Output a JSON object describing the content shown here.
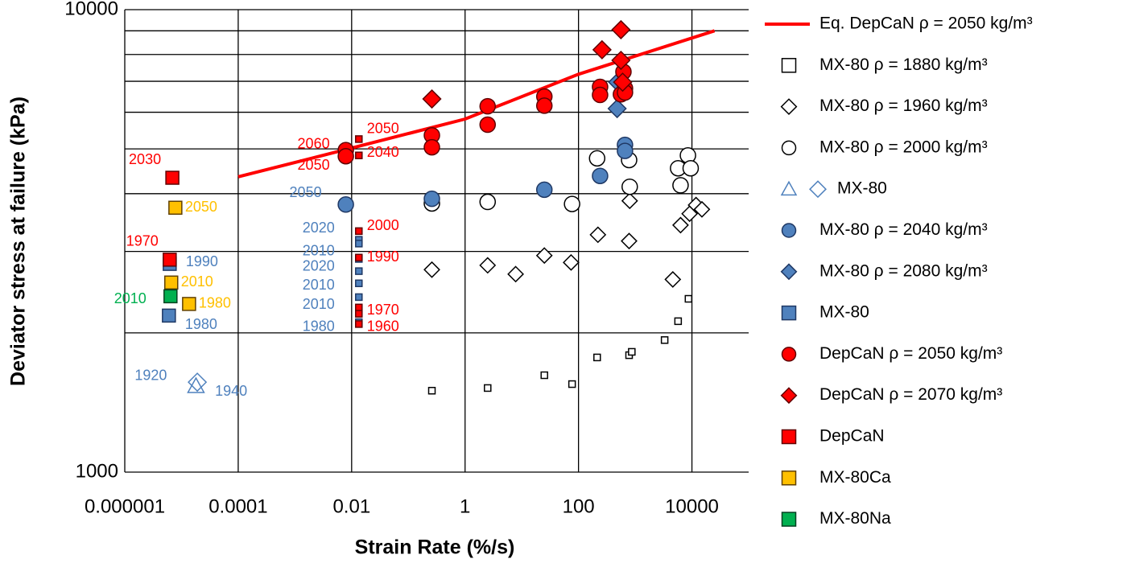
{
  "chart_data": {
    "type": "scatter",
    "x_label": "Strain Rate (%/s)",
    "y_label": "Deviator stress at failure (kPa)",
    "xscale": "log",
    "yscale": "log",
    "xlim": [
      1e-06,
      100000
    ],
    "ylim": [
      1000,
      10000
    ],
    "xticks": [
      1e-06,
      0.0001,
      0.01,
      1,
      100,
      10000
    ],
    "yticks": [
      1000,
      10000
    ],
    "ygrid": [
      2000,
      3000,
      4000,
      5000,
      6000,
      7000,
      8000,
      9000
    ],
    "grid": true,
    "legend": "right",
    "series": [
      {
        "name": "Eq. DepCaN ρ = 2050  kg/m³",
        "style": "line",
        "color": "#ff0000",
        "x": [
          0.0001,
          0.01,
          1,
          100,
          25000
        ],
        "values": [
          4350,
          5020,
          5800,
          7250,
          9000
        ]
      },
      {
        "name": "MX-80 ρ = 1880 kg/m³",
        "marker": "square",
        "color": "#ffffff",
        "edge": "#000000",
        "x": [
          0.26,
          2.5,
          25,
          77,
          213,
          780,
          870,
          3300,
          5700,
          8700
        ],
        "values": [
          1500,
          1520,
          1620,
          1550,
          1770,
          1790,
          1820,
          1930,
          2120,
          2370
        ]
      },
      {
        "name": "MX-80 ρ = 1960 kg/m³",
        "marker": "diamond",
        "color": "#ffffff",
        "edge": "#000000",
        "x": [
          0.26,
          2.5,
          7.8,
          25,
          74,
          220,
          780,
          800,
          4600,
          6300,
          9100,
          11800,
          15000
        ],
        "values": [
          2740,
          2800,
          2680,
          2940,
          2840,
          3260,
          3160,
          3860,
          2610,
          3420,
          3620,
          3780,
          3700
        ]
      },
      {
        "name": "MX-80 ρ = 2000 kg/m³",
        "marker": "circle",
        "color": "#ffffff",
        "edge": "#000000",
        "x": [
          0.26,
          2.5,
          77,
          213,
          780,
          800,
          5700,
          6300,
          8500,
          9500
        ],
        "values": [
          3810,
          3840,
          3800,
          4770,
          4730,
          4140,
          4540,
          4170,
          4840,
          4540
        ]
      },
      {
        "name": "MX-80",
        "markers": [
          "triangle",
          "diamond"
        ],
        "color": "none",
        "edge": "#4f81bd",
        "x": [
          1.8e-05,
          1.9e-05
        ],
        "values": [
          1535,
          1565
        ],
        "labels": [
          "1920",
          "1940"
        ]
      },
      {
        "name": "MX-80 ρ = 2040 kg/m³",
        "marker": "circle",
        "color": "#4f81bd",
        "edge": "#1f3864",
        "x": [
          0.0079,
          0.26,
          25,
          240,
          660,
          660
        ],
        "values": [
          3790,
          3900,
          4080,
          4370,
          5100,
          4950
        ],
        "labels": [
          "2050",
          null,
          null,
          null,
          null,
          null
        ]
      },
      {
        "name": "MX-80 ρ = 2080 kg/m³",
        "marker": "diamond",
        "color": "#4f81bd",
        "edge": "#1f3864",
        "x": [
          480,
          490
        ],
        "values": [
          6110,
          6970
        ]
      },
      {
        "name": "MX-80",
        "marker": "square",
        "color": "#4f81bd",
        "edge": "#1f3864",
        "x": [
          6e-06,
          6.2e-06,
          0.0134,
          0.0134,
          0.0134,
          0.0134,
          0.0134,
          0.0134,
          0.0134
        ],
        "values": [
          2180,
          2820,
          3180,
          3120,
          2890,
          2720,
          2560,
          2390,
          2110
        ],
        "labels": [
          "1980",
          "1990",
          "2020",
          "2010",
          "2020",
          null,
          "2010",
          "2010",
          "1980"
        ]
      },
      {
        "name": "DepCaN ρ = 2050 kg/m³",
        "marker": "circle",
        "color": "#ff0000",
        "edge": "#600000",
        "x": [
          0.0079,
          0.0079,
          0.26,
          0.26,
          2.5,
          2.5,
          25,
          25,
          240,
          240,
          620,
          660,
          560,
          660
        ],
        "values": [
          4970,
          4820,
          5350,
          5040,
          6180,
          5640,
          6490,
          6200,
          6810,
          6540,
          7340,
          6760,
          6560,
          6620
        ],
        "labels": [
          "2060",
          "2050",
          null,
          null,
          null,
          null,
          null,
          null,
          null,
          null,
          null,
          null,
          null,
          null
        ]
      },
      {
        "name": "DepCaN ρ = 2070 kg/m³",
        "marker": "diamond",
        "color": "#ff0000",
        "edge": "#600000",
        "x": [
          0.26,
          260,
          560,
          560,
          600
        ],
        "values": [
          6410,
          8190,
          9050,
          7770,
          6970
        ]
      },
      {
        "name": "DepCaN",
        "marker": "square",
        "color": "#ff0000",
        "edge": "#600000",
        "x": [
          6.9e-06,
          6.2e-06,
          0.0134,
          0.0134,
          0.0134,
          0.0134,
          0.0134,
          0.0134,
          0.0134
        ],
        "values": [
          4330,
          2880,
          5250,
          4840,
          3320,
          2910,
          2270,
          2200,
          2090
        ],
        "labels": [
          "2030",
          "1970",
          "2050",
          "2040",
          "2000",
          "1990",
          "1970",
          null,
          "1960"
        ]
      },
      {
        "name": "MX-80Ca",
        "marker": "square",
        "color": "#ffc000",
        "edge": "#604000",
        "x": [
          7.8e-06,
          6.6e-06,
          1.36e-05
        ],
        "values": [
          3730,
          2570,
          2310
        ],
        "labels": [
          "2050",
          "2010",
          "1980"
        ]
      },
      {
        "name": "MX-80Na",
        "marker": "square",
        "color": "#00b050",
        "edge": "#004020",
        "x": [
          6.4e-06
        ],
        "values": [
          2400
        ],
        "labels": [
          "2010"
        ]
      }
    ]
  }
}
